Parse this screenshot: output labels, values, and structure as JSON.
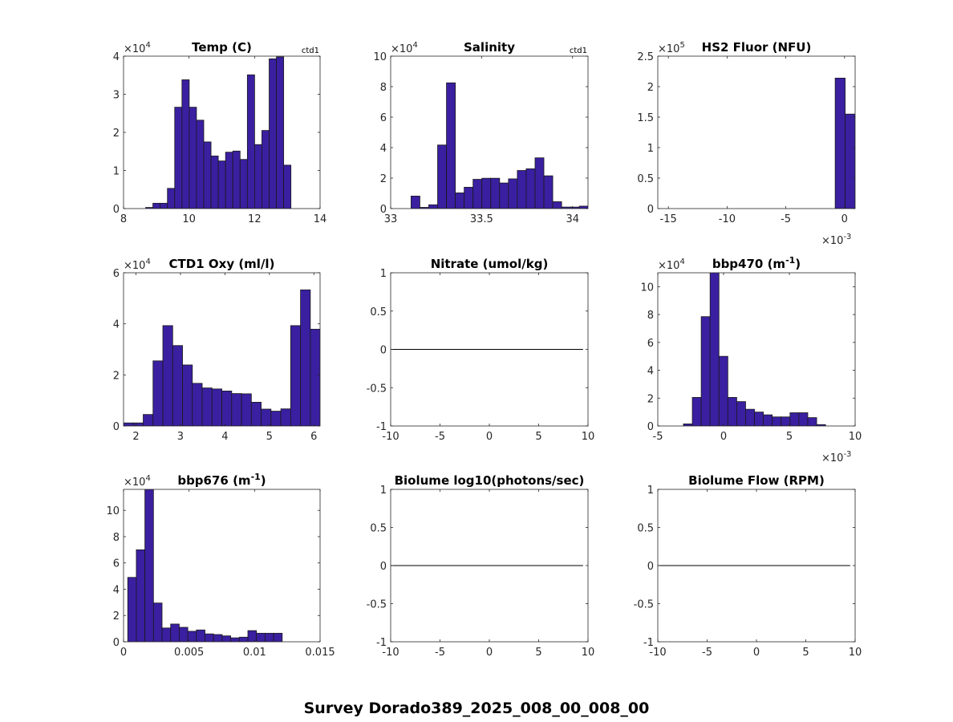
{
  "figure": {
    "title": "Survey Dorado389_2025_008_00_008_00",
    "bar_color": "#3a1fa0",
    "edge_color": "#1a1a1a"
  },
  "chart_data": [
    {
      "type": "bar",
      "title": "Temp (C)",
      "note": "ctd1",
      "xlim": [
        8,
        14
      ],
      "ylim": [
        0,
        4
      ],
      "xticks": [
        {
          "v": 8,
          "l": "8"
        },
        {
          "v": 10,
          "l": "10"
        },
        {
          "v": 12,
          "l": "12"
        },
        {
          "v": 14,
          "l": "14"
        }
      ],
      "yticks": [
        {
          "v": 0,
          "l": "0"
        },
        {
          "v": 1,
          "l": "1"
        },
        {
          "v": 2,
          "l": "2"
        },
        {
          "v": 3,
          "l": "3"
        },
        {
          "v": 4,
          "l": "4"
        }
      ],
      "yexp": {
        "base": "×10",
        "pow": "4"
      },
      "bins": {
        "start": 8.6745,
        "width": 0.2218
      },
      "values": [
        0.03,
        0.14,
        0.14,
        0.53,
        2.66,
        3.38,
        2.66,
        2.32,
        1.75,
        1.38,
        1.25,
        1.48,
        1.51,
        1.29,
        3.51,
        1.68,
        2.05,
        3.93,
        3.98,
        1.14
      ]
    },
    {
      "type": "bar",
      "title": "Salinity",
      "note": "ctd1",
      "xlim": [
        33,
        34.085
      ],
      "ylim": [
        0,
        10
      ],
      "xticks": [
        {
          "v": 33,
          "l": "33"
        },
        {
          "v": 33.5,
          "l": "33.5"
        },
        {
          "v": 34,
          "l": "34"
        }
      ],
      "yticks": [
        {
          "v": 0,
          "l": "0"
        },
        {
          "v": 2,
          "l": "2"
        },
        {
          "v": 4,
          "l": "4"
        },
        {
          "v": 6,
          "l": "6"
        },
        {
          "v": 8,
          "l": "8"
        },
        {
          "v": 10,
          "l": "10"
        }
      ],
      "yexp": {
        "base": "×10",
        "pow": "4"
      },
      "bins": {
        "start": 33.112,
        "width": 0.0487
      },
      "values": [
        0.82,
        0.08,
        0.25,
        4.17,
        8.25,
        1.03,
        1.4,
        1.92,
        1.99,
        1.99,
        1.68,
        1.95,
        2.5,
        2.61,
        3.33,
        2.15,
        0.45,
        0.1,
        0.1,
        0.16
      ]
    },
    {
      "type": "bar",
      "title": "HS2 Fluor (NFU)",
      "note": "",
      "xlim": [
        -15.9,
        0.9
      ],
      "ylim": [
        0,
        2.5
      ],
      "xticks": [
        {
          "v": -15,
          "l": "-15"
        },
        {
          "v": -10,
          "l": "-10"
        },
        {
          "v": -5,
          "l": "-5"
        },
        {
          "v": 0,
          "l": "0"
        }
      ],
      "yticks": [
        {
          "v": 0,
          "l": "0"
        },
        {
          "v": 0.5,
          "l": "0.5"
        },
        {
          "v": 1,
          "l": "1"
        },
        {
          "v": 1.5,
          "l": "1.5"
        },
        {
          "v": 2,
          "l": "2"
        },
        {
          "v": 2.5,
          "l": "2.5"
        }
      ],
      "yexp": {
        "base": "×10",
        "pow": "5"
      },
      "xexp": {
        "base": "×10",
        "pow": "-3"
      },
      "bins": {
        "start": -0.8,
        "width": 0.85
      },
      "values": [
        2.14,
        1.55
      ]
    },
    {
      "type": "bar",
      "title": "CTD1 Oxy (ml/l)",
      "note": "",
      "xlim": [
        1.72,
        6.14
      ],
      "ylim": [
        0,
        6
      ],
      "xticks": [
        {
          "v": 2,
          "l": "2"
        },
        {
          "v": 3,
          "l": "3"
        },
        {
          "v": 4,
          "l": "4"
        },
        {
          "v": 5,
          "l": "5"
        },
        {
          "v": 6,
          "l": "6"
        }
      ],
      "yticks": [
        {
          "v": 0,
          "l": "0"
        },
        {
          "v": 2,
          "l": "2"
        },
        {
          "v": 4,
          "l": "4"
        },
        {
          "v": 6,
          "l": "6"
        }
      ],
      "yexp": {
        "base": "×10",
        "pow": "4"
      },
      "bins": {
        "start": 1.72,
        "width": 0.2211
      },
      "values": [
        0.12,
        0.12,
        0.45,
        2.55,
        3.93,
        3.15,
        2.39,
        1.67,
        1.49,
        1.45,
        1.37,
        1.27,
        1.26,
        0.93,
        0.66,
        0.58,
        0.67,
        3.93,
        5.33,
        3.79
      ]
    },
    {
      "type": "empty",
      "title": "Nitrate (umol/kg)",
      "note": "",
      "xlim": [
        -10,
        10
      ],
      "ylim": [
        -1,
        1
      ],
      "xticks": [
        {
          "v": -10,
          "l": "-10"
        },
        {
          "v": -5,
          "l": "-5"
        },
        {
          "v": 0,
          "l": "0"
        },
        {
          "v": 5,
          "l": "5"
        },
        {
          "v": 10,
          "l": "10"
        }
      ],
      "yticks": [
        {
          "v": -1,
          "l": "-1"
        },
        {
          "v": -0.5,
          "l": "-0.5"
        },
        {
          "v": 0,
          "l": "0"
        },
        {
          "v": 0.5,
          "l": "0.5"
        },
        {
          "v": 1,
          "l": "1"
        }
      ],
      "line": {
        "x": [
          -10,
          9.5
        ],
        "y": [
          0,
          0
        ]
      }
    },
    {
      "type": "bar",
      "title": "bbp470 (m",
      "title_sup": "-1",
      "title_end": ")",
      "note": "",
      "xlim": [
        -5,
        10
      ],
      "ylim": [
        0,
        11
      ],
      "xticks": [
        {
          "v": -5,
          "l": "-5"
        },
        {
          "v": 0,
          "l": "0"
        },
        {
          "v": 5,
          "l": "5"
        },
        {
          "v": 10,
          "l": "10"
        }
      ],
      "yticks": [
        {
          "v": 0,
          "l": "0"
        },
        {
          "v": 2,
          "l": "2"
        },
        {
          "v": 4,
          "l": "4"
        },
        {
          "v": 6,
          "l": "6"
        },
        {
          "v": 8,
          "l": "8"
        },
        {
          "v": 10,
          "l": "10"
        }
      ],
      "yexp": {
        "base": "×10",
        "pow": "4"
      },
      "xexp": {
        "base": "×10",
        "pow": "-3"
      },
      "bins": {
        "start": -3.05,
        "width": 0.675
      },
      "values": [
        0.15,
        2.05,
        7.85,
        11.2,
        5.0,
        2.05,
        1.75,
        1.2,
        1.0,
        0.8,
        0.65,
        0.65,
        0.95,
        0.95,
        0.6,
        0.1
      ]
    },
    {
      "type": "bar",
      "title": "bbp676 (m",
      "title_sup": "-1",
      "title_end": ")",
      "note": "",
      "xlim": [
        0,
        0.015
      ],
      "ylim": [
        0,
        11.6
      ],
      "xticks": [
        {
          "v": 0,
          "l": "0"
        },
        {
          "v": 0.005,
          "l": "0.005"
        },
        {
          "v": 0.01,
          "l": "0.01"
        },
        {
          "v": 0.015,
          "l": "0.015"
        }
      ],
      "yticks": [
        {
          "v": 0,
          "l": "0"
        },
        {
          "v": 2,
          "l": "2"
        },
        {
          "v": 4,
          "l": "4"
        },
        {
          "v": 6,
          "l": "6"
        },
        {
          "v": 8,
          "l": "8"
        },
        {
          "v": 10,
          "l": "10"
        }
      ],
      "yexp": {
        "base": "×10",
        "pow": "4"
      },
      "bins": {
        "start": 0.00032,
        "width": 0.000655
      },
      "values": [
        4.9,
        7.0,
        11.6,
        2.95,
        1.05,
        1.35,
        1.1,
        0.8,
        0.9,
        0.6,
        0.55,
        0.45,
        0.3,
        0.35,
        0.85,
        0.65,
        0.65,
        0.65
      ]
    },
    {
      "type": "empty",
      "title": "Biolume log10(photons/sec)",
      "note": "",
      "xlim": [
        -10,
        10
      ],
      "ylim": [
        -1,
        1
      ],
      "xticks": [
        {
          "v": -10,
          "l": "-10"
        },
        {
          "v": -5,
          "l": "-5"
        },
        {
          "v": 0,
          "l": "0"
        },
        {
          "v": 5,
          "l": "5"
        },
        {
          "v": 10,
          "l": "10"
        }
      ],
      "yticks": [
        {
          "v": -1,
          "l": "-1"
        },
        {
          "v": -0.5,
          "l": "-0.5"
        },
        {
          "v": 0,
          "l": "0"
        },
        {
          "v": 0.5,
          "l": "0.5"
        },
        {
          "v": 1,
          "l": "1"
        }
      ],
      "line": {
        "x": [
          -10,
          9.5
        ],
        "y": [
          0,
          0
        ]
      }
    },
    {
      "type": "empty",
      "title": "Biolume Flow (RPM)",
      "note": "",
      "xlim": [
        -10,
        10
      ],
      "ylim": [
        -1,
        1
      ],
      "xticks": [
        {
          "v": -10,
          "l": "-10"
        },
        {
          "v": -5,
          "l": "-5"
        },
        {
          "v": 0,
          "l": "0"
        },
        {
          "v": 5,
          "l": "5"
        },
        {
          "v": 10,
          "l": "10"
        }
      ],
      "yticks": [
        {
          "v": -1,
          "l": "-1"
        },
        {
          "v": -0.5,
          "l": "-0.5"
        },
        {
          "v": 0,
          "l": "0"
        },
        {
          "v": 0.5,
          "l": "0.5"
        },
        {
          "v": 1,
          "l": "1"
        }
      ],
      "line": {
        "x": [
          -10,
          9.5
        ],
        "y": [
          0,
          0
        ]
      }
    }
  ]
}
